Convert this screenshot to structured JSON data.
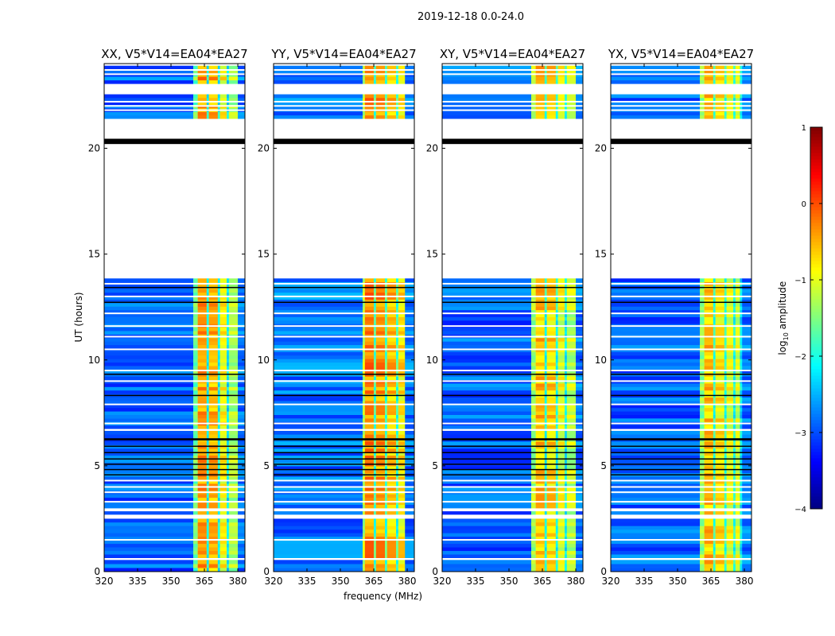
{
  "chart_data": {
    "type": "heatmap",
    "suptitle": "2019-12-18 0.0-24.0",
    "xlabel": "frequency (MHz)",
    "ylabel": "UT (hours)",
    "xlim": [
      320,
      383.2
    ],
    "ylim": [
      0,
      24
    ],
    "xticks": [
      320,
      335,
      350,
      365,
      380
    ],
    "yticks": [
      0,
      5,
      10,
      15,
      20
    ],
    "colorbar": {
      "label": "log10 amplitude",
      "label_main": "log",
      "label_sub": "10",
      "label_tail": " amplitude",
      "range": [
        -4,
        1
      ],
      "ticks": [
        1,
        0,
        -1,
        -2,
        -3,
        -4
      ],
      "colormap": "jet"
    },
    "data_segments_hours": [
      [
        0,
        0.55
      ],
      [
        0.65,
        2.5
      ],
      [
        2.7,
        2.85
      ],
      [
        3.0,
        6.65
      ],
      [
        6.75,
        13.85
      ],
      [
        21.4,
        22.55
      ],
      [
        23.05,
        23.9
      ]
    ],
    "black_bands_hours": [
      [
        20.2,
        20.45
      ],
      [
        6.2,
        6.3
      ],
      [
        5.9,
        5.95
      ],
      [
        5.6,
        5.65
      ],
      [
        5.3,
        5.35
      ],
      [
        5.05,
        5.1
      ],
      [
        4.8,
        4.85
      ],
      [
        4.55,
        4.6
      ],
      [
        8.3,
        8.35
      ],
      [
        9.3,
        9.35
      ],
      [
        12.7,
        12.75
      ],
      [
        13.4,
        13.45
      ]
    ],
    "flagged_lines_hours": [
      1.5,
      3.3,
      3.75,
      4.0,
      4.3,
      7.0,
      7.9,
      9.0,
      9.5,
      10.5,
      11.1,
      11.6,
      12.2,
      13.0,
      13.6,
      21.8,
      22.0,
      22.2,
      23.5,
      23.7
    ],
    "panels": [
      {
        "title": "XX, V5*V14=EA04*EA27",
        "bands": [
          {
            "f": [
              320,
              360
            ],
            "level": -2.9
          },
          {
            "f": [
              360,
              362
            ],
            "level": -1.6
          },
          {
            "f": [
              362,
              366
            ],
            "level": -0.4
          },
          {
            "f": [
              366,
              367
            ],
            "level": -2.1
          },
          {
            "f": [
              367,
              371
            ],
            "level": -0.5
          },
          {
            "f": [
              371,
              372
            ],
            "level": -2.1
          },
          {
            "f": [
              372,
              375
            ],
            "level": -0.9
          },
          {
            "f": [
              375,
              376
            ],
            "level": -2.2
          },
          {
            "f": [
              376,
              380
            ],
            "level": -1.3
          },
          {
            "f": [
              380,
              383.2
            ],
            "level": -2.8
          }
        ]
      },
      {
        "title": "YY, V5*V14=EA04*EA27",
        "bands": [
          {
            "f": [
              320,
              360
            ],
            "level": -2.8
          },
          {
            "f": [
              360,
              361
            ],
            "level": -1.2
          },
          {
            "f": [
              361,
              365
            ],
            "level": -0.3
          },
          {
            "f": [
              365,
              366
            ],
            "level": -1.8
          },
          {
            "f": [
              366,
              370
            ],
            "level": -0.4
          },
          {
            "f": [
              370,
              371
            ],
            "level": -1.8
          },
          {
            "f": [
              371,
              375
            ],
            "level": -0.6
          },
          {
            "f": [
              375,
              376
            ],
            "level": -1.9
          },
          {
            "f": [
              376,
              379
            ],
            "level": -0.8
          },
          {
            "f": [
              379,
              383.2
            ],
            "level": -2.8
          }
        ]
      },
      {
        "title": "XY, V5*V14=EA04*EA27",
        "bands": [
          {
            "f": [
              320,
              360
            ],
            "level": -2.9
          },
          {
            "f": [
              360,
              362
            ],
            "level": -1.3
          },
          {
            "f": [
              362,
              366
            ],
            "level": -0.6
          },
          {
            "f": [
              366,
              367
            ],
            "level": -2.0
          },
          {
            "f": [
              367,
              371
            ],
            "level": -0.7
          },
          {
            "f": [
              371,
              372
            ],
            "level": -2.0
          },
          {
            "f": [
              372,
              375
            ],
            "level": -1.0
          },
          {
            "f": [
              375,
              376
            ],
            "level": -2.1
          },
          {
            "f": [
              376,
              380
            ],
            "level": -1.2
          },
          {
            "f": [
              380,
              383.2
            ],
            "level": -2.8
          }
        ]
      },
      {
        "title": "YX, V5*V14=EA04*EA27",
        "bands": [
          {
            "f": [
              320,
              360
            ],
            "level": -2.9
          },
          {
            "f": [
              360,
              362
            ],
            "level": -1.4
          },
          {
            "f": [
              362,
              366
            ],
            "level": -0.6
          },
          {
            "f": [
              366,
              367
            ],
            "level": -1.9
          },
          {
            "f": [
              367,
              371
            ],
            "level": -0.8
          },
          {
            "f": [
              371,
              372
            ],
            "level": -1.9
          },
          {
            "f": [
              372,
              375
            ],
            "level": -1.0
          },
          {
            "f": [
              375,
              376
            ],
            "level": -2.0
          },
          {
            "f": [
              376,
              378
            ],
            "level": -1.1
          },
          {
            "f": [
              378,
              379
            ],
            "level": -2.2
          },
          {
            "f": [
              379,
              383.2
            ],
            "level": -2.8
          }
        ]
      }
    ]
  }
}
